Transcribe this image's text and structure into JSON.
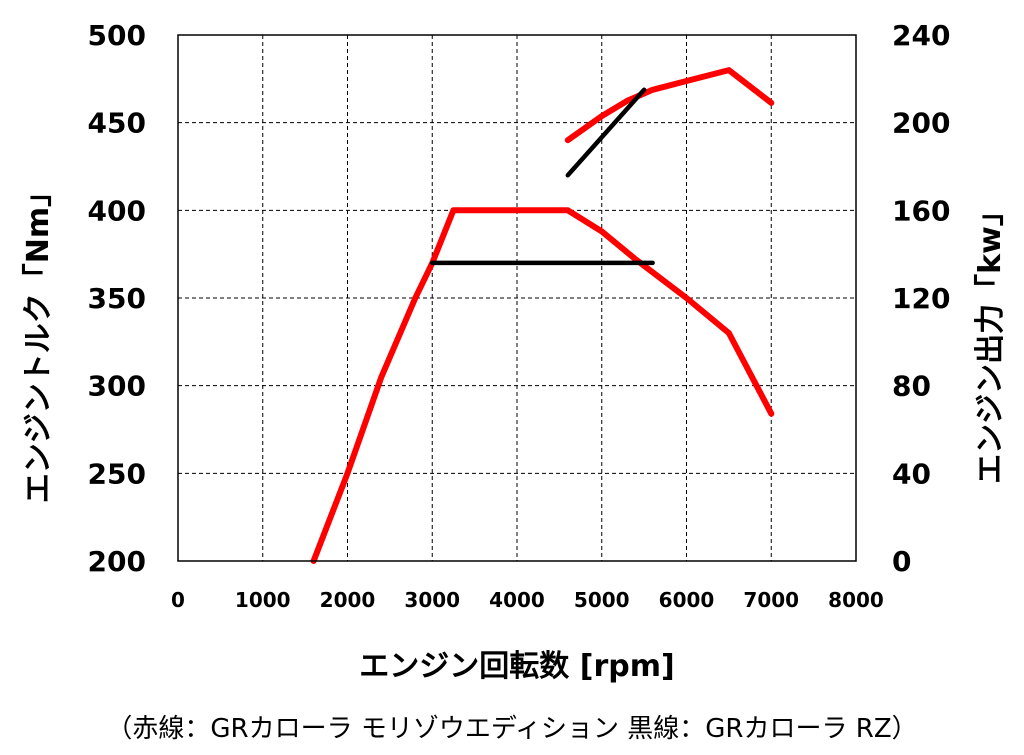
{
  "chart_data": {
    "type": "line",
    "xlabel": "エンジン回転数 [rpm]",
    "ylabel_left": "エンジントルク「Nm」",
    "ylabel_right": "エンジン出力「kw」",
    "xlim": [
      0,
      8000
    ],
    "x_ticks": [
      "0",
      "1000",
      "2000",
      "3000",
      "4000",
      "5000",
      "6000",
      "7000",
      "8000"
    ],
    "ylim_left": [
      200,
      500
    ],
    "y_ticks_left": [
      "200",
      "250",
      "300",
      "350",
      "400",
      "450",
      "500"
    ],
    "ylim_right": [
      0,
      240
    ],
    "y_ticks_right": [
      "0",
      "40",
      "80",
      "120",
      "160",
      "200",
      "240"
    ],
    "grid": true,
    "colors": {
      "red": "#ff0000",
      "black": "#000000"
    },
    "series": [
      {
        "axis": "left",
        "color": "#ff0000",
        "x": [
          1600,
          2000,
          2400,
          2800,
          3000,
          3250,
          4600,
          5000,
          5400,
          6000,
          6500,
          7000
        ],
        "y": [
          200,
          250,
          305,
          350,
          370,
          400,
          400,
          388,
          372,
          350,
          330,
          284
        ]
      },
      {
        "axis": "left",
        "color": "#000000",
        "x": [
          3000,
          5600
        ],
        "y": [
          370,
          370
        ]
      },
      {
        "axis": "right",
        "color": "#ff0000",
        "x": [
          4600,
          5000,
          5300,
          5600,
          6000,
          6500,
          7000
        ],
        "y": [
          192,
          203,
          210,
          215,
          219,
          224,
          209
        ]
      },
      {
        "axis": "right",
        "color": "#000000",
        "x": [
          4600,
          5500
        ],
        "y": [
          176,
          215
        ]
      }
    ],
    "caption": "（赤線：GRカローラ モリゾウエディション  黒線：GRカローラ RZ）"
  }
}
